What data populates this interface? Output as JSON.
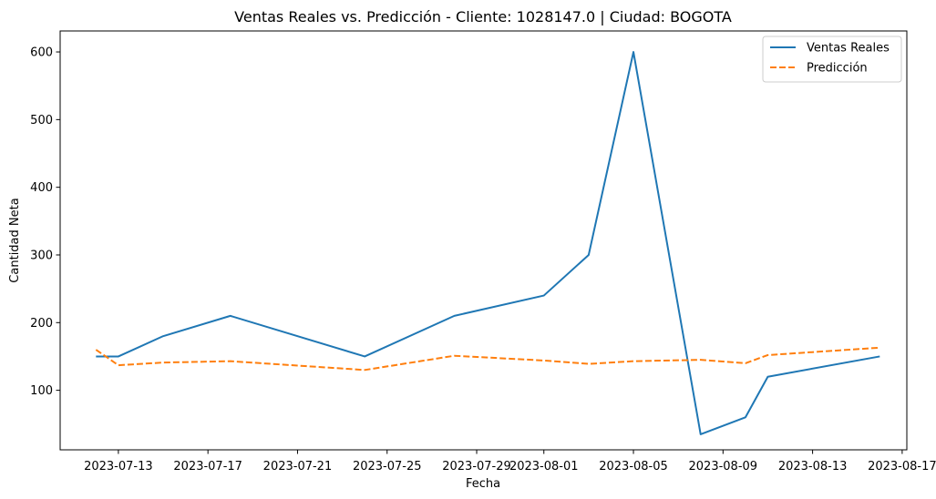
{
  "chart_data": {
    "type": "line",
    "title": "Ventas Reales vs. Predicción - Cliente: 1028147.0 | Ciudad: BOGOTA",
    "xlabel": "Fecha",
    "ylabel": "Cantidad Neta",
    "x_axis_type": "date",
    "xlim": [
      "2023-07-10T09:36",
      "2023-08-17T05:00"
    ],
    "ylim": [
      12,
      631
    ],
    "x_ticks": [
      "2023-07-13",
      "2023-07-17",
      "2023-07-21",
      "2023-07-25",
      "2023-07-29",
      "2023-08-01",
      "2023-08-05",
      "2023-08-09",
      "2023-08-13",
      "2023-08-17"
    ],
    "y_ticks": [
      100,
      200,
      300,
      400,
      500,
      600
    ],
    "grid": false,
    "legend_position": "top-right",
    "series": [
      {
        "name": "Ventas Reales",
        "color": "#1f77b4",
        "style": "solid",
        "points": [
          [
            "2023-07-12",
            150
          ],
          [
            "2023-07-13",
            150
          ],
          [
            "2023-07-15",
            180
          ],
          [
            "2023-07-18",
            210
          ],
          [
            "2023-07-24",
            150
          ],
          [
            "2023-07-28",
            210
          ],
          [
            "2023-08-01",
            240
          ],
          [
            "2023-08-03",
            300
          ],
          [
            "2023-08-05",
            600
          ],
          [
            "2023-08-08",
            35
          ],
          [
            "2023-08-10",
            60
          ],
          [
            "2023-08-11",
            120
          ],
          [
            "2023-08-16",
            150
          ]
        ]
      },
      {
        "name": "Predicción",
        "color": "#ff7f0e",
        "style": "dashed",
        "points": [
          [
            "2023-07-12",
            160
          ],
          [
            "2023-07-13",
            137
          ],
          [
            "2023-07-15",
            141
          ],
          [
            "2023-07-18",
            143
          ],
          [
            "2023-07-24",
            130
          ],
          [
            "2023-07-28",
            151
          ],
          [
            "2023-08-01",
            144
          ],
          [
            "2023-08-03",
            139
          ],
          [
            "2023-08-05",
            143
          ],
          [
            "2023-08-08",
            145
          ],
          [
            "2023-08-10",
            140
          ],
          [
            "2023-08-11",
            152
          ],
          [
            "2023-08-16",
            163
          ]
        ]
      }
    ]
  }
}
